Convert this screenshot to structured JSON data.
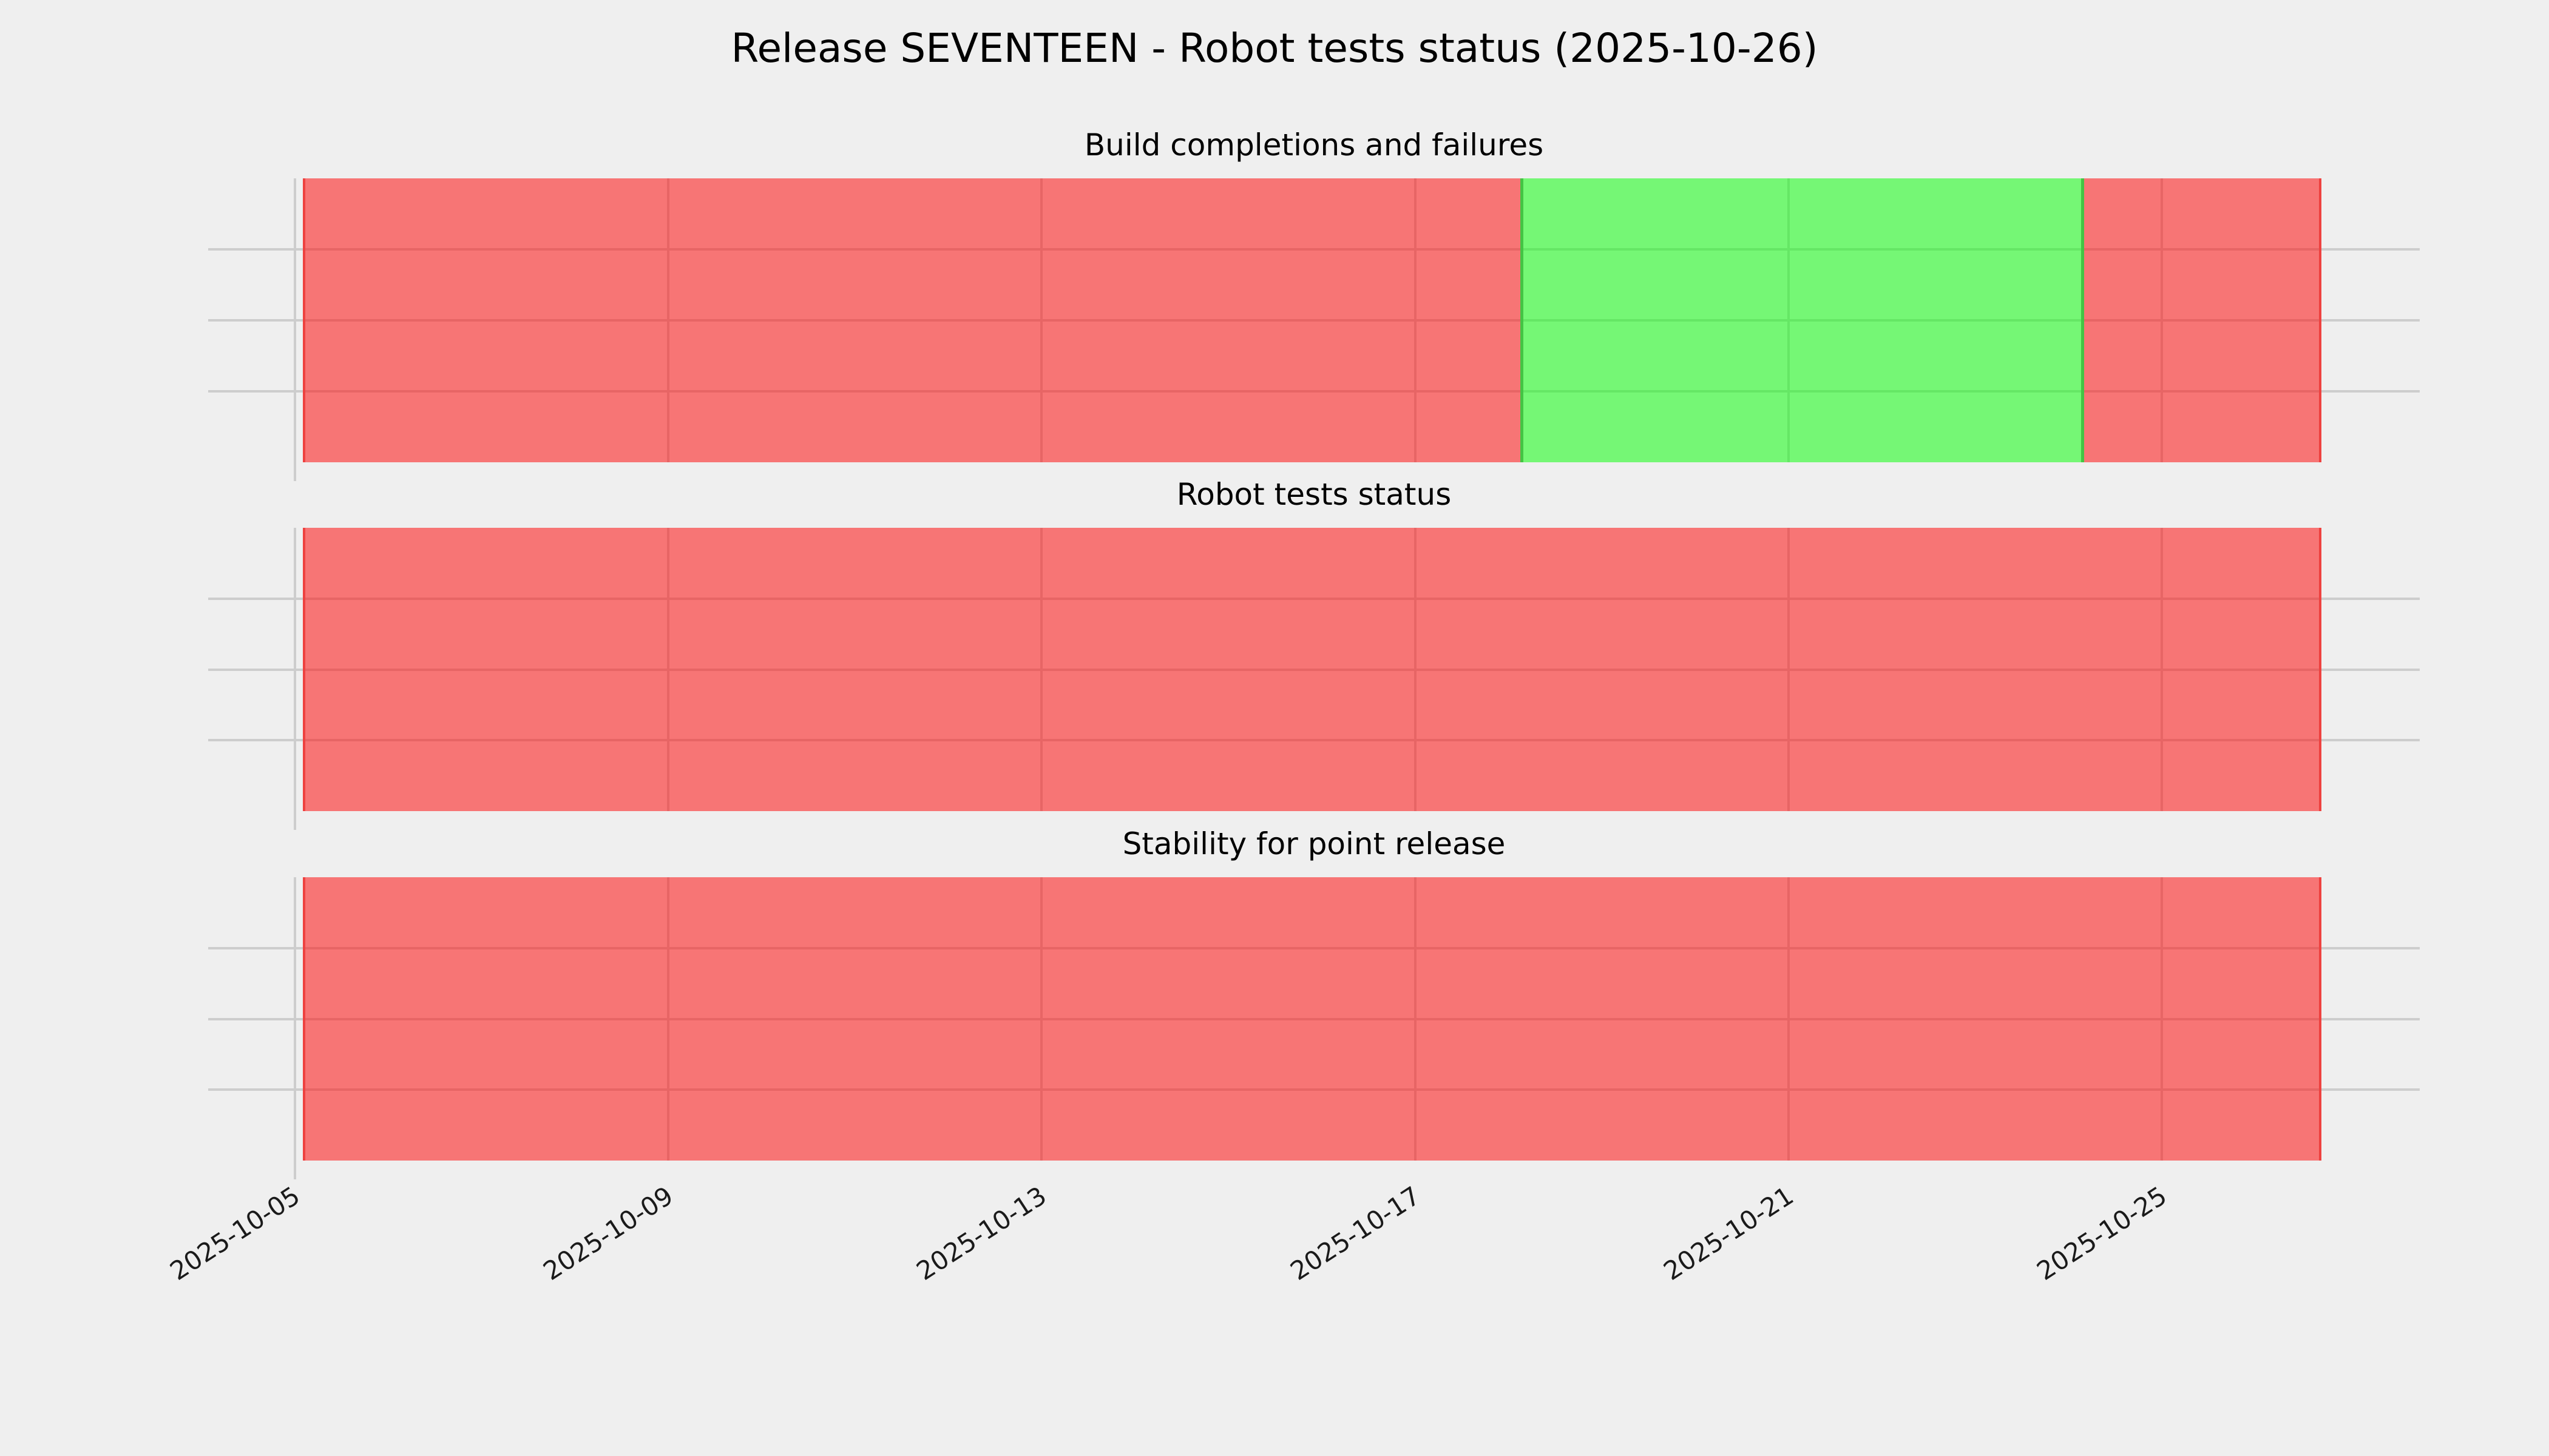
{
  "figure": {
    "title": "Release SEVENTEEN - Robot tests status (2025-10-26)",
    "background_color": "#efefef",
    "grid_color": "#cdcdcd",
    "text_color": "#000000"
  },
  "chart_data": {
    "type": "area",
    "subtype": "status-timeline-bars",
    "title": "Release SEVENTEEN - Robot tests status (2025-10-26)",
    "x_tick_labels": [
      "2025-10-05",
      "2025-10-09",
      "2025-10-13",
      "2025-10-17",
      "2025-10-21",
      "2025-10-25"
    ],
    "x_tick_rotation_deg": 33,
    "x_range": [
      "2025-10-04T02:00:00",
      "2025-10-27T19:00:00"
    ],
    "grid": true,
    "legend": "none",
    "y_gridlines_per_subplot": 3,
    "palette": {
      "fail_fill": "rgba(255,10,10,0.53)",
      "fail_fill_rendered_hex": "#f67572",
      "fail_edge": "#ee4240",
      "pass_fill": "rgba(10,255,10,0.53)",
      "pass_fill_rendered_hex": "#77f377",
      "pass_edge": "#44c444",
      "grid": "#cdcdcd",
      "background": "#efefef"
    },
    "subplots": [
      {
        "title": "Build completions and failures",
        "intervals": [
          {
            "start": "2025-10-05T02:00:00",
            "end": "2025-10-18T03:00:00",
            "status": "fail"
          },
          {
            "start": "2025-10-18T03:00:00",
            "end": "2025-10-24T04:00:00",
            "status": "pass"
          },
          {
            "start": "2025-10-24T04:00:00",
            "end": "2025-10-26T17:00:00",
            "status": "fail"
          }
        ]
      },
      {
        "title": "Robot tests status",
        "intervals": [
          {
            "start": "2025-10-05T02:00:00",
            "end": "2025-10-26T17:00:00",
            "status": "fail"
          }
        ]
      },
      {
        "title": "Stability for point release",
        "intervals": [
          {
            "start": "2025-10-05T02:00:00",
            "end": "2025-10-26T17:00:00",
            "status": "fail"
          }
        ]
      }
    ]
  }
}
